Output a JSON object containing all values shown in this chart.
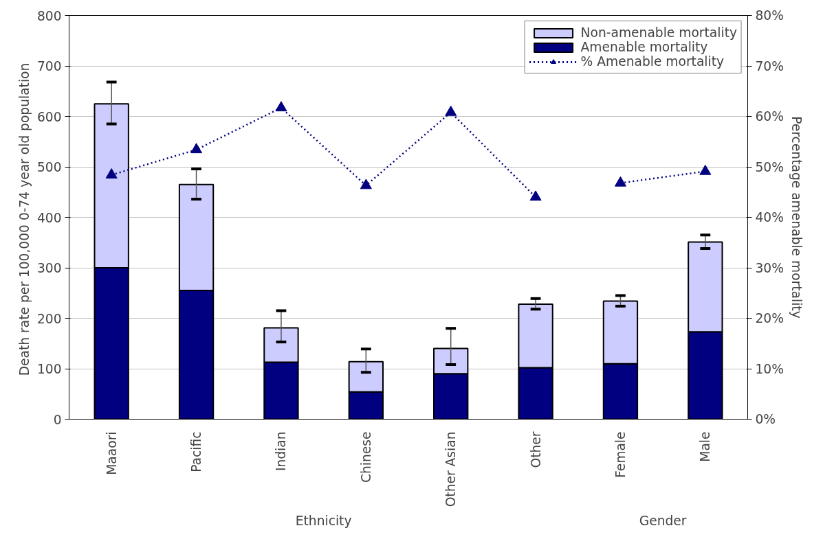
{
  "chart_data": {
    "type": "bar",
    "stacked": true,
    "categories": [
      "Maaori",
      "Pacific",
      "Indian",
      "Chinese",
      "Other Asian",
      "Other",
      "Female",
      "Male"
    ],
    "ylabel": "Death rate per 100,000  0-74 year old population",
    "y2label": "Percentage amenable mortality",
    "ylim": [
      0,
      800
    ],
    "yticks": [
      0,
      100,
      200,
      300,
      400,
      500,
      600,
      700,
      800
    ],
    "y2lim": [
      0,
      80
    ],
    "y2ticks": [
      {
        "value": 0,
        "label": "0%"
      },
      {
        "value": 10,
        "label": "10%"
      },
      {
        "value": 20,
        "label": "20%"
      },
      {
        "value": 30,
        "label": "30%"
      },
      {
        "value": 40,
        "label": "40%"
      },
      {
        "value": 50,
        "label": "50%"
      },
      {
        "value": 60,
        "label": "60%"
      },
      {
        "value": 70,
        "label": "70%"
      },
      {
        "value": 80,
        "label": "80%"
      }
    ],
    "series": [
      {
        "name": "Amenable mortality",
        "color": "#000080",
        "values": [
          300,
          255,
          113,
          54,
          90,
          102,
          110,
          173
        ]
      },
      {
        "name": "Non-amenable mortality",
        "color": "#ccccff",
        "values": [
          325,
          210,
          68,
          60,
          50,
          126,
          124,
          178
        ],
        "errors": [
          [
            585,
            668
          ],
          [
            436,
            496
          ],
          [
            153,
            215
          ],
          [
            93,
            139
          ],
          [
            108,
            180
          ],
          [
            218,
            239
          ],
          [
            224,
            245
          ],
          [
            338,
            365
          ]
        ]
      },
      {
        "name": "% Amenable mortality",
        "type": "line",
        "axis": "y2",
        "color": "#000080",
        "marker": "triangle",
        "line_style": "dotted",
        "values": [
          48.4,
          53.4,
          61.7,
          46.3,
          60.8,
          44.0,
          null,
          null
        ]
      },
      {
        "type": "line",
        "axis": "y2",
        "color": "#000080",
        "marker": "triangle",
        "line_style": "dotted",
        "values": [
          null,
          null,
          null,
          null,
          null,
          null,
          46.8,
          49.1
        ]
      }
    ],
    "annotations": [
      "Ethnicity",
      "Gender"
    ],
    "grid": "y",
    "legend": "top right"
  }
}
